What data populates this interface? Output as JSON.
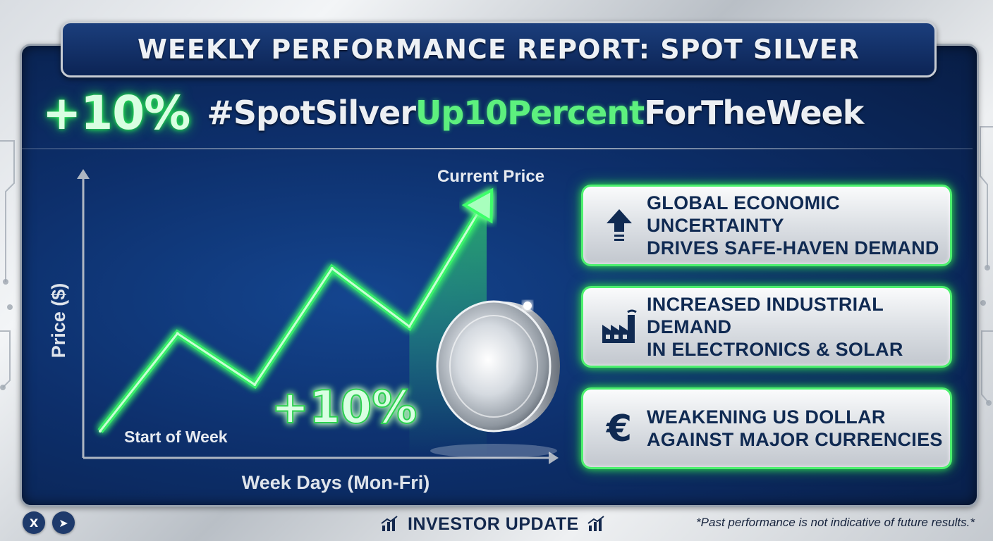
{
  "header": {
    "title": "WEEKLY PERFORMANCE REPORT: SPOT SILVER",
    "change": "+10%",
    "hashtag_part1": "#SpotSilver",
    "hashtag_part2": "Up10Percent",
    "hashtag_part3": "ForTheWeek"
  },
  "chart_data": {
    "type": "line",
    "title": "",
    "xlabel": "Week Days (Mon-Fri)",
    "ylabel": "Price ($)",
    "x": [
      0,
      1,
      2,
      3,
      4,
      5
    ],
    "values": [
      0,
      42,
      20,
      70,
      45,
      100
    ],
    "start_label": "Start of Week",
    "end_label": "Current Price",
    "change_label": "+10%",
    "grid": false,
    "colors": {
      "line": "#3cff6a",
      "axis": "#aeb6c2"
    }
  },
  "reasons": [
    {
      "icon": "arrow-up-icon",
      "line1": "GLOBAL ECONOMIC UNCERTAINTY",
      "line2": "DRIVES SAFE-HAVEN DEMAND"
    },
    {
      "icon": "factory-icon",
      "line1": "INCREASED INDUSTRIAL DEMAND",
      "line2": "IN ELECTRONICS & SOLAR"
    },
    {
      "icon": "euro-icon",
      "line1": "WEAKENING US DOLLAR",
      "line2": "AGAINST MAJOR CURRENCIES"
    }
  ],
  "footer": {
    "label": "INVESTOR UPDATE",
    "disclaimer": "*Past performance is not indicative of future results.*",
    "social": [
      {
        "icon": "x-logo-icon",
        "glyph": "X"
      },
      {
        "icon": "telegram-icon",
        "glyph": "➤"
      }
    ]
  },
  "colors": {
    "navy": "#0d2f6b",
    "neon_green": "#3cff6a",
    "silver": "#d9dde2",
    "text_dark": "#102a52"
  }
}
